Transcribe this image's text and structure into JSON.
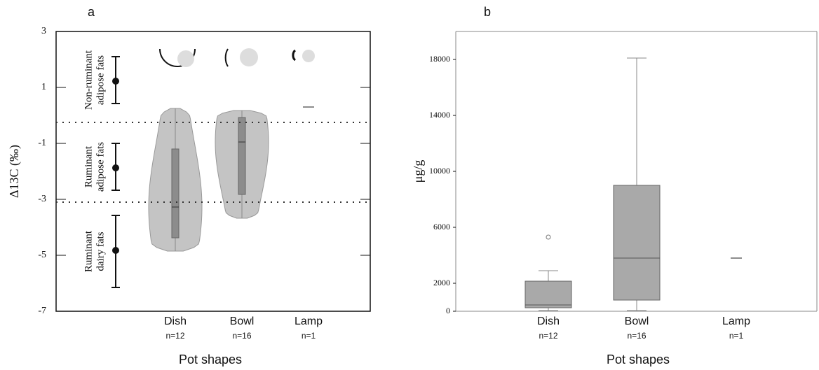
{
  "chart_data": [
    {
      "type": "violin",
      "panel_label": "a",
      "ylabel": "Δ13C (‰)",
      "xlabel": "Pot shapes",
      "categories": [
        "Dish",
        "Bowl",
        "Lamp"
      ],
      "n_labels": [
        "n=12",
        "n=16",
        "n=1"
      ],
      "color": "#c4c4c4",
      "box_color": "#8c8c8c",
      "min": [
        -4.85,
        -3.675,
        0.3
      ],
      "q1": [
        -4.375,
        -2.825,
        null
      ],
      "median": [
        -3.275,
        -0.95,
        0.3
      ],
      "q3": [
        -1.2,
        -0.075,
        null
      ],
      "max": [
        0.25,
        0.175,
        0.3
      ],
      "reference_ranges": [
        {
          "label": [
            "Non-ruminant",
            "adipose fats"
          ],
          "mean": 1.225,
          "low": 0.425,
          "high": 2.1
        },
        {
          "label": [
            "Ruminant",
            "adipose fats"
          ],
          "mean": -1.875,
          "low": -2.675,
          "high": -1.0
        },
        {
          "label": [
            "Ruminant",
            "dairy fats"
          ],
          "mean": -4.825,
          "low": -6.15,
          "high": -3.575
        }
      ],
      "reference_lines": [
        -0.25,
        -3.1
      ],
      "ylim": [
        -7,
        3
      ],
      "yticks": [
        -7,
        -5,
        -3,
        -1,
        1,
        3
      ]
    },
    {
      "type": "box",
      "panel_label": "b",
      "ylabel": "μg/g",
      "xlabel": "Pot shapes",
      "categories": [
        "Dish",
        "Bowl",
        "Lamp"
      ],
      "n_labels": [
        "n=12",
        "n=16",
        "n=1"
      ],
      "color": "#a9a9a9",
      "min": [
        50,
        50,
        3800
      ],
      "q1": [
        250,
        800,
        null
      ],
      "median": [
        450,
        3800,
        3800
      ],
      "q3": [
        2150,
        9000,
        null
      ],
      "max": [
        2900,
        18100,
        3800
      ],
      "outliers": [
        [
          5300
        ],
        [],
        []
      ],
      "ylim": [
        0,
        20000
      ],
      "yticks": [
        0,
        2000,
        6000,
        10000,
        14000,
        18000
      ]
    }
  ]
}
